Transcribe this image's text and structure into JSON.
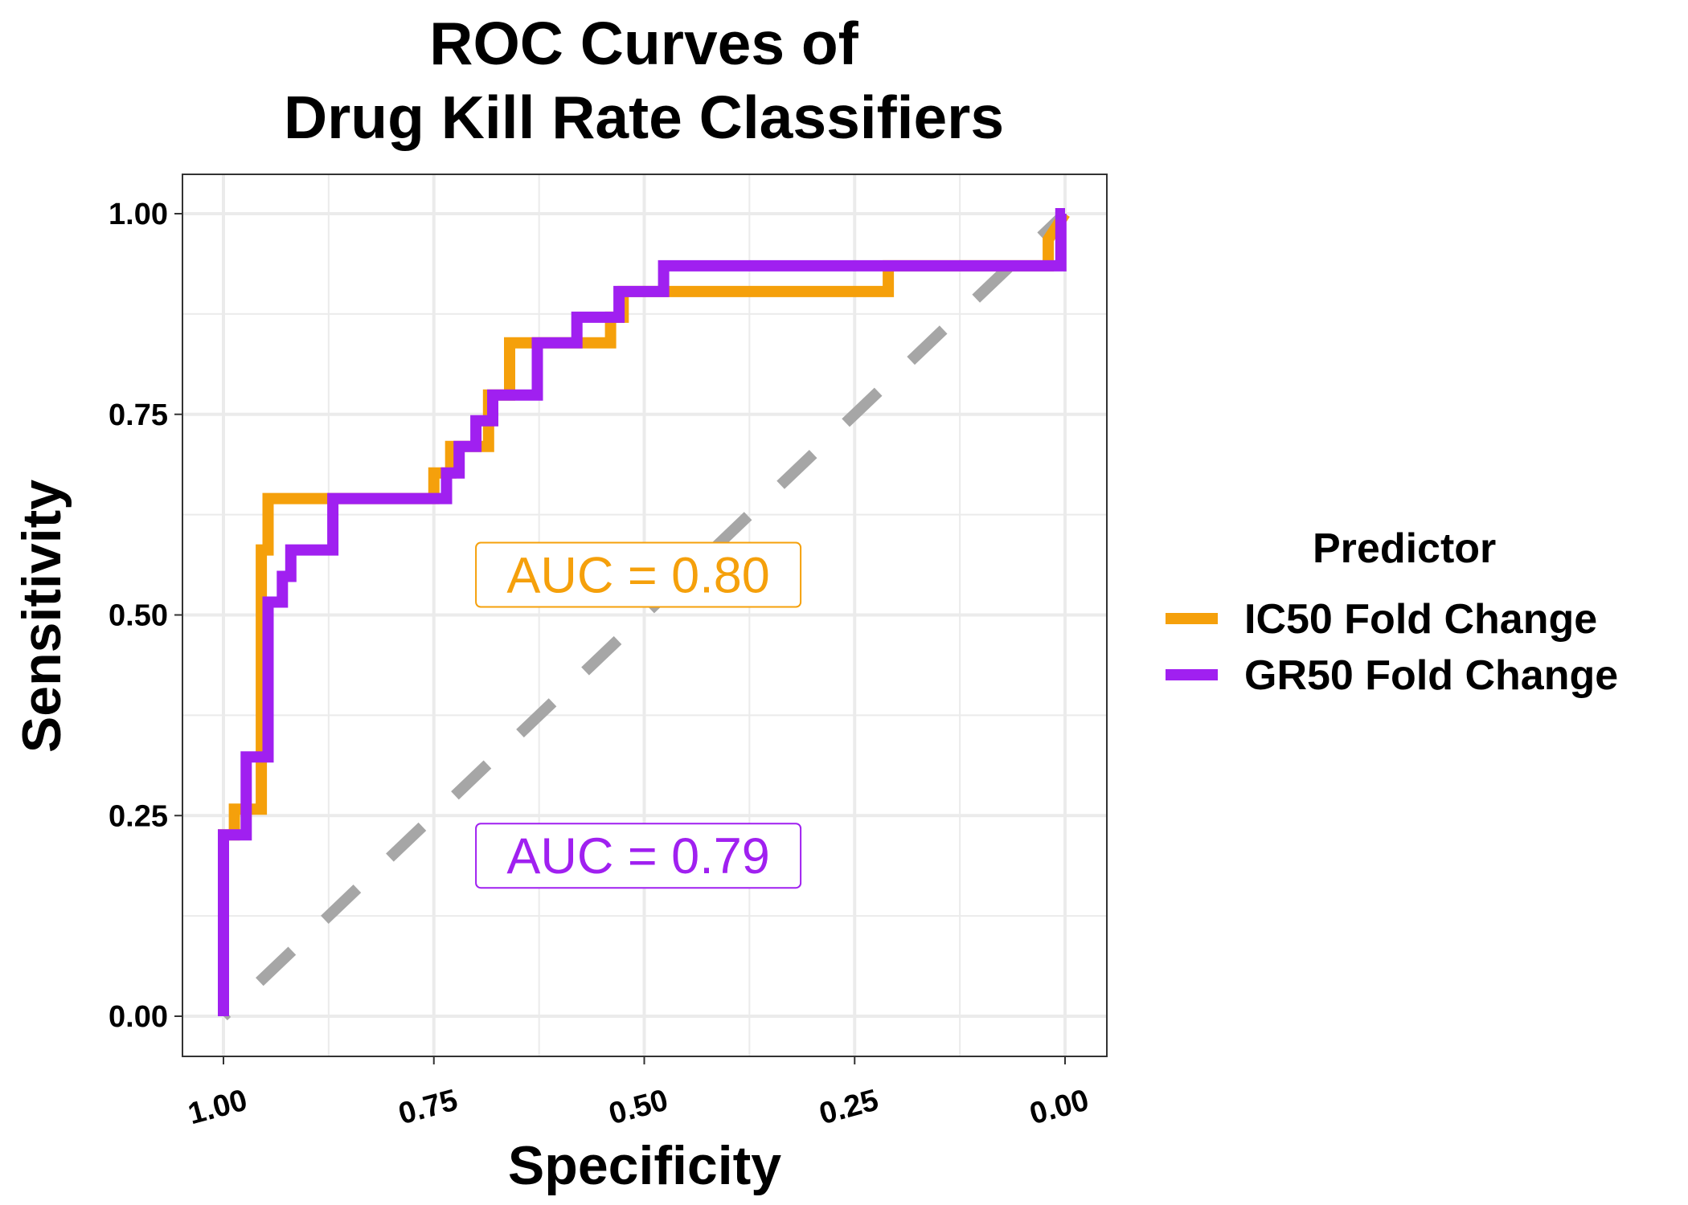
{
  "chart_data": {
    "type": "line",
    "title": [
      "ROC Curves of",
      "Drug Kill Rate Classifiers"
    ],
    "xlabel": "Specificity",
    "ylabel": "Sensitivity",
    "xlim": [
      1.0,
      0.0
    ],
    "ylim": [
      0.0,
      1.0
    ],
    "x_ticks": [
      1.0,
      0.75,
      0.5,
      0.25,
      0.0
    ],
    "x_tick_labels": [
      "1.00",
      "0.75",
      "0.50",
      "0.25",
      "0.00"
    ],
    "y_ticks": [
      0.0,
      0.25,
      0.5,
      0.75,
      1.0
    ],
    "y_tick_labels": [
      "0.00",
      "0.25",
      "0.50",
      "0.75",
      "1.00"
    ],
    "grid": true,
    "legend": {
      "title": "Predictor",
      "position": "right"
    },
    "reference_line": {
      "x": [
        1.0,
        0.0
      ],
      "y": [
        0.0,
        1.0
      ],
      "color": "#A6A6A6",
      "style": "dashed"
    },
    "series": [
      {
        "name": "IC50 Fold Change",
        "color": "#F5A00B",
        "x": [
          1.0,
          1.0,
          0.987,
          0.987,
          0.955,
          0.955,
          0.947,
          0.947,
          0.75,
          0.75,
          0.73,
          0.73,
          0.685,
          0.685,
          0.66,
          0.66,
          0.54,
          0.54,
          0.525,
          0.525,
          0.21,
          0.21,
          0.02,
          0.02,
          0.0
        ],
        "y": [
          0.0,
          0.226,
          0.226,
          0.258,
          0.258,
          0.581,
          0.581,
          0.645,
          0.645,
          0.677,
          0.677,
          0.71,
          0.71,
          0.774,
          0.774,
          0.839,
          0.839,
          0.871,
          0.871,
          0.903,
          0.903,
          0.935,
          0.935,
          0.968,
          1.0
        ]
      },
      {
        "name": "GR50 Fold Change",
        "color": "#A020F0",
        "x": [
          1.0,
          1.0,
          0.973,
          0.973,
          0.947,
          0.947,
          0.93,
          0.93,
          0.92,
          0.92,
          0.87,
          0.87,
          0.735,
          0.735,
          0.72,
          0.72,
          0.7,
          0.7,
          0.68,
          0.68,
          0.627,
          0.627,
          0.58,
          0.58,
          0.53,
          0.53,
          0.477,
          0.477,
          0.42,
          0.42,
          0.005,
          0.005,
          0.0
        ],
        "y": [
          0.0,
          0.226,
          0.226,
          0.323,
          0.323,
          0.516,
          0.516,
          0.548,
          0.548,
          0.581,
          0.581,
          0.645,
          0.645,
          0.677,
          0.677,
          0.71,
          0.71,
          0.742,
          0.742,
          0.774,
          0.774,
          0.839,
          0.839,
          0.871,
          0.871,
          0.903,
          0.903,
          0.935,
          0.935,
          0.935,
          0.935,
          1.0,
          1.0
        ]
      }
    ],
    "annotations": [
      {
        "text": "AUC = 0.80",
        "x": 0.7,
        "y": 0.55,
        "color": "#F5A00B"
      },
      {
        "text": "AUC = 0.79",
        "x": 0.7,
        "y": 0.2,
        "color": "#A020F0"
      }
    ]
  }
}
